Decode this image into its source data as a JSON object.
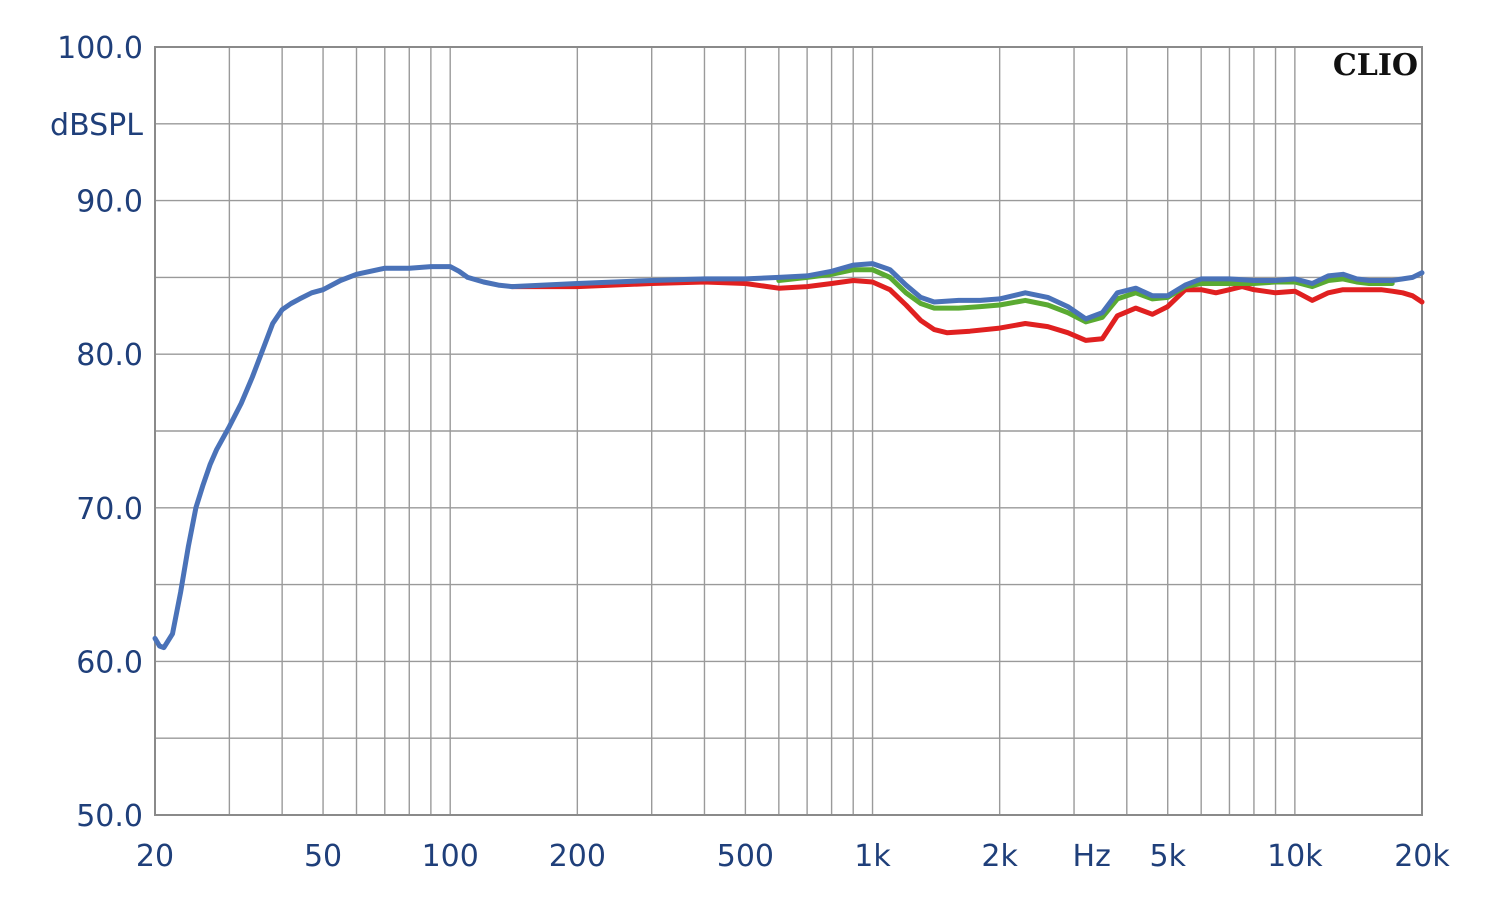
{
  "chart_data": {
    "type": "line",
    "logo": "CLIO",
    "xlabel": "Hz",
    "ylabel": "dBSPL",
    "xscale": "log",
    "xlim": [
      20,
      20000
    ],
    "ylim": [
      50,
      100
    ],
    "grid": true,
    "x_ticks": [
      {
        "value": 20,
        "label": "20"
      },
      {
        "value": 50,
        "label": "50"
      },
      {
        "value": 100,
        "label": "100"
      },
      {
        "value": 200,
        "label": "200"
      },
      {
        "value": 500,
        "label": "500"
      },
      {
        "value": 1000,
        "label": "1k"
      },
      {
        "value": 2000,
        "label": "2k"
      },
      {
        "value": 5000,
        "label": "5k"
      },
      {
        "value": 10000,
        "label": "10k"
      },
      {
        "value": 20000,
        "label": "20k"
      }
    ],
    "y_ticks": [
      {
        "value": 100,
        "label": "100.0"
      },
      {
        "value": 90,
        "label": "90.0"
      },
      {
        "value": 80,
        "label": "80.0"
      },
      {
        "value": 70,
        "label": "70.0"
      },
      {
        "value": 60,
        "label": "60.0"
      },
      {
        "value": 50,
        "label": "50.0"
      }
    ],
    "series": [
      {
        "color": "#e02020",
        "points": [
          [
            140,
            84.4
          ],
          [
            200,
            84.4
          ],
          [
            300,
            84.6
          ],
          [
            400,
            84.7
          ],
          [
            500,
            84.6
          ],
          [
            600,
            84.3
          ],
          [
            700,
            84.4
          ],
          [
            800,
            84.6
          ],
          [
            900,
            84.8
          ],
          [
            1000,
            84.7
          ],
          [
            1100,
            84.2
          ],
          [
            1200,
            83.2
          ],
          [
            1300,
            82.2
          ],
          [
            1400,
            81.6
          ],
          [
            1500,
            81.4
          ],
          [
            1700,
            81.5
          ],
          [
            2000,
            81.7
          ],
          [
            2300,
            82.0
          ],
          [
            2600,
            81.8
          ],
          [
            2900,
            81.4
          ],
          [
            3200,
            80.9
          ],
          [
            3500,
            81.0
          ],
          [
            3800,
            82.5
          ],
          [
            4200,
            83.0
          ],
          [
            4600,
            82.6
          ],
          [
            5000,
            83.1
          ],
          [
            5500,
            84.2
          ],
          [
            6000,
            84.2
          ],
          [
            6500,
            84.0
          ],
          [
            7000,
            84.2
          ],
          [
            7500,
            84.4
          ],
          [
            8000,
            84.2
          ],
          [
            9000,
            84.0
          ],
          [
            10000,
            84.1
          ],
          [
            11000,
            83.5
          ],
          [
            12000,
            84.0
          ],
          [
            13000,
            84.2
          ],
          [
            14000,
            84.2
          ],
          [
            15000,
            84.2
          ],
          [
            16000,
            84.2
          ],
          [
            17000,
            84.1
          ],
          [
            18000,
            84.0
          ],
          [
            19000,
            83.8
          ],
          [
            20000,
            83.4
          ]
        ]
      },
      {
        "color": "#5aaa32",
        "points": [
          [
            600,
            84.8
          ],
          [
            700,
            85.0
          ],
          [
            800,
            85.2
          ],
          [
            900,
            85.5
          ],
          [
            1000,
            85.5
          ],
          [
            1100,
            85.0
          ],
          [
            1200,
            84.0
          ],
          [
            1300,
            83.3
          ],
          [
            1400,
            83.0
          ],
          [
            1600,
            83.0
          ],
          [
            1800,
            83.1
          ],
          [
            2000,
            83.2
          ],
          [
            2300,
            83.5
          ],
          [
            2600,
            83.2
          ],
          [
            2900,
            82.7
          ],
          [
            3200,
            82.1
          ],
          [
            3500,
            82.4
          ],
          [
            3800,
            83.6
          ],
          [
            4200,
            84.0
          ],
          [
            4600,
            83.6
          ],
          [
            5000,
            83.7
          ],
          [
            5500,
            84.4
          ],
          [
            6000,
            84.6
          ],
          [
            7000,
            84.6
          ],
          [
            8000,
            84.6
          ],
          [
            9000,
            84.7
          ],
          [
            10000,
            84.7
          ],
          [
            11000,
            84.4
          ],
          [
            12000,
            84.8
          ],
          [
            13000,
            84.9
          ],
          [
            14000,
            84.7
          ],
          [
            15000,
            84.6
          ],
          [
            16000,
            84.6
          ],
          [
            17000,
            84.6
          ]
        ]
      },
      {
        "color": "#4a72b8",
        "points": [
          [
            20,
            61.5
          ],
          [
            20.5,
            61.0
          ],
          [
            21,
            60.9
          ],
          [
            22,
            61.8
          ],
          [
            23,
            64.5
          ],
          [
            24,
            67.5
          ],
          [
            25,
            70.0
          ],
          [
            26,
            71.5
          ],
          [
            27,
            72.8
          ],
          [
            28,
            73.8
          ],
          [
            30,
            75.3
          ],
          [
            32,
            76.8
          ],
          [
            34,
            78.5
          ],
          [
            36,
            80.3
          ],
          [
            38,
            82.0
          ],
          [
            40,
            82.9
          ],
          [
            42,
            83.3
          ],
          [
            44,
            83.6
          ],
          [
            47,
            84.0
          ],
          [
            50,
            84.2
          ],
          [
            55,
            84.8
          ],
          [
            60,
            85.2
          ],
          [
            70,
            85.6
          ],
          [
            80,
            85.6
          ],
          [
            90,
            85.7
          ],
          [
            100,
            85.7
          ],
          [
            105,
            85.4
          ],
          [
            110,
            85.0
          ],
          [
            120,
            84.7
          ],
          [
            130,
            84.5
          ],
          [
            140,
            84.4
          ],
          [
            200,
            84.6
          ],
          [
            300,
            84.8
          ],
          [
            400,
            84.9
          ],
          [
            500,
            84.9
          ],
          [
            600,
            85.0
          ],
          [
            700,
            85.1
          ],
          [
            800,
            85.4
          ],
          [
            900,
            85.8
          ],
          [
            1000,
            85.9
          ],
          [
            1100,
            85.5
          ],
          [
            1200,
            84.5
          ],
          [
            1300,
            83.7
          ],
          [
            1400,
            83.4
          ],
          [
            1600,
            83.5
          ],
          [
            1800,
            83.5
          ],
          [
            2000,
            83.6
          ],
          [
            2300,
            84.0
          ],
          [
            2600,
            83.7
          ],
          [
            2900,
            83.1
          ],
          [
            3200,
            82.3
          ],
          [
            3500,
            82.7
          ],
          [
            3800,
            84.0
          ],
          [
            4200,
            84.3
          ],
          [
            4600,
            83.8
          ],
          [
            5000,
            83.8
          ],
          [
            5500,
            84.5
          ],
          [
            6000,
            84.9
          ],
          [
            7000,
            84.9
          ],
          [
            8000,
            84.8
          ],
          [
            9000,
            84.8
          ],
          [
            10000,
            84.9
          ],
          [
            11000,
            84.6
          ],
          [
            12000,
            85.1
          ],
          [
            13000,
            85.2
          ],
          [
            14000,
            84.9
          ],
          [
            15000,
            84.8
          ],
          [
            16000,
            84.8
          ],
          [
            17000,
            84.8
          ],
          [
            18000,
            84.9
          ],
          [
            19000,
            85.0
          ],
          [
            20000,
            85.3
          ]
        ]
      }
    ]
  }
}
